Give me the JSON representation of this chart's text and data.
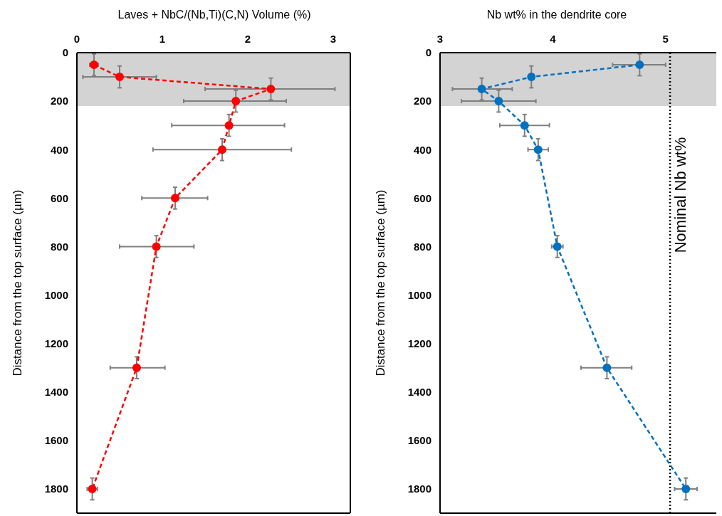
{
  "chart_data": [
    {
      "type": "line",
      "xlabel": "Laves + NbC/(Nb,Ti)(C,N) Volume (%)",
      "ylabel": "Distance from the top surface (µm)",
      "xlim": [
        0,
        3.2
      ],
      "xticks": [
        0,
        1,
        2,
        3
      ],
      "ylim": [
        1900,
        0
      ],
      "yticks": [
        0,
        200,
        400,
        600,
        800,
        1000,
        1200,
        1400,
        1600,
        1800
      ],
      "marker": "circle",
      "line_style": "dashed",
      "series": [
        {
          "color": "#ff0000",
          "x": [
            0.2,
            0.5,
            2.27,
            1.86,
            1.78,
            1.7,
            1.15,
            0.93,
            0.7,
            0.18
          ],
          "values": [
            50,
            100,
            150,
            200,
            300,
            400,
            600,
            800,
            1300,
            1800
          ],
          "xerrors": [
            [
              0.15,
              0.25
            ],
            [
              0.07,
              0.93
            ],
            [
              1.5,
              3.02
            ],
            [
              1.25,
              2.45
            ],
            [
              1.11,
              2.43
            ],
            [
              0.89,
              2.51
            ],
            [
              0.76,
              1.53
            ],
            [
              0.5,
              1.37
            ],
            [
              0.39,
              1.03
            ],
            [
              0.12,
              0.24
            ]
          ],
          "errors": [
            45,
            45,
            45,
            45,
            45,
            45,
            45,
            45,
            45,
            45
          ]
        }
      ],
      "bands": [
        {
          "axis": "y",
          "from": 0,
          "to": 220,
          "color": "#d3d3d3"
        }
      ]
    },
    {
      "type": "line",
      "xlabel": "Nb wt% in the dendrite core",
      "ylabel": "Distance from the top surface (µm)",
      "xlim": [
        3,
        5.45
      ],
      "xticks": [
        3,
        4,
        5
      ],
      "ylim": [
        1900,
        0
      ],
      "yticks": [
        0,
        200,
        400,
        600,
        800,
        1000,
        1200,
        1400,
        1600,
        1800
      ],
      "marker": "circle",
      "line_style": "dashed",
      "series": [
        {
          "color": "#0070c0",
          "x": [
            4.77,
            3.81,
            3.37,
            3.52,
            3.75,
            3.87,
            4.04,
            4.48,
            5.18
          ],
          "values": [
            50,
            100,
            150,
            200,
            300,
            400,
            800,
            1300,
            1800
          ],
          "xerrors": [
            [
              4.53,
              5.0
            ],
            null,
            [
              3.11,
              3.64
            ],
            [
              3.19,
              3.85
            ],
            [
              3.53,
              3.97
            ],
            [
              3.78,
              3.96
            ],
            [
              3.99,
              4.09
            ],
            [
              4.25,
              4.7
            ],
            [
              5.08,
              5.28
            ]
          ],
          "errors": [
            45,
            45,
            45,
            45,
            45,
            45,
            45,
            45,
            45
          ]
        }
      ],
      "bands": [
        {
          "axis": "y",
          "from": 0,
          "to": 220,
          "color": "#d3d3d3"
        }
      ],
      "ref_lines": [
        {
          "axis": "x",
          "value": 5.04,
          "label": "Nominal Nb wt%",
          "color": "#000000",
          "line_style": "dotted"
        }
      ]
    }
  ]
}
